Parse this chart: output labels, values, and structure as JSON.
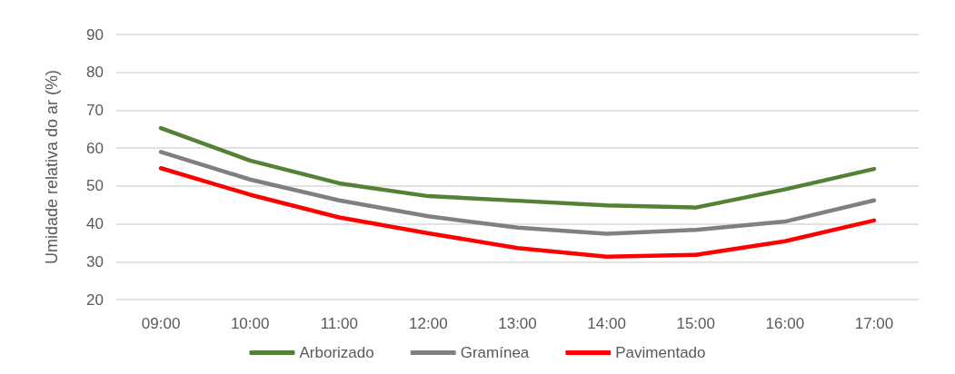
{
  "chart_data": {
    "type": "line",
    "ylabel": "Umidade relativa do ar (%)",
    "categories": [
      "09:00",
      "10:00",
      "11:00",
      "12:00",
      "13:00",
      "14:00",
      "15:00",
      "16:00",
      "17:00"
    ],
    "series": [
      {
        "name": "Arborizado",
        "color": "#548235",
        "values": [
          65.3,
          56.7,
          50.7,
          47.3,
          46.1,
          44.9,
          44.3,
          49.1,
          54.5
        ]
      },
      {
        "name": "Gramínea",
        "color": "#808080",
        "values": [
          59,
          51.7,
          46.2,
          42,
          39,
          37.4,
          38.4,
          40.6,
          46.2
        ]
      },
      {
        "name": "Pavimentado",
        "color": "#ff0000",
        "values": [
          54.7,
          47.7,
          41.7,
          37.5,
          33.6,
          31.3,
          31.8,
          35.4,
          40.9
        ]
      }
    ],
    "ylim": [
      20,
      90
    ],
    "yticks": [
      20,
      30,
      40,
      50,
      60,
      70,
      80,
      90
    ],
    "grid": "y",
    "legend": "bottom",
    "marker": "none",
    "line_style": "solid"
  }
}
